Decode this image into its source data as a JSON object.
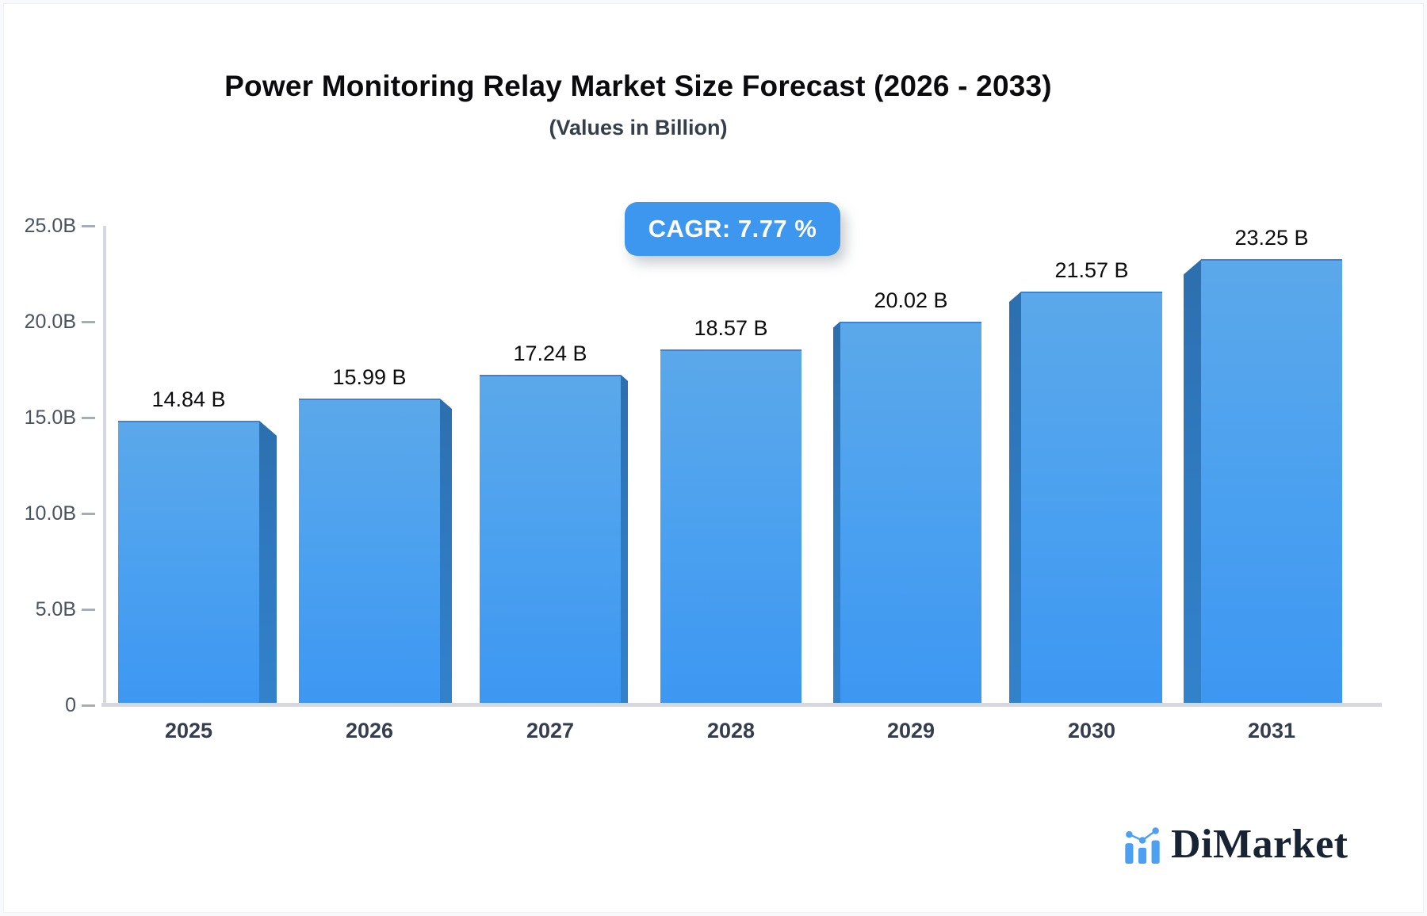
{
  "chart_data": {
    "type": "bar",
    "title": "Power Monitoring Relay Market Size Forecast (2026 - 2033)",
    "subtitle": "(Values in Billion)",
    "cagr_text": "CAGR: 7.77 %",
    "categories": [
      "2025",
      "2026",
      "2027",
      "2028",
      "2029",
      "2030",
      "2031"
    ],
    "values": [
      14.84,
      15.99,
      17.24,
      18.57,
      20.02,
      21.57,
      23.25
    ],
    "bar_labels": [
      "14.84 B",
      "15.99 B",
      "17.24 B",
      "18.57 B",
      "20.02 B",
      "21.57 B",
      "23.25 B"
    ],
    "xlabel": "",
    "ylabel": "",
    "ylim": [
      0,
      25
    ],
    "yticks": [
      {
        "value": 25,
        "label": "25.0B"
      },
      {
        "value": 20,
        "label": "20.0B"
      },
      {
        "value": 15,
        "label": "15.0B"
      },
      {
        "value": 10,
        "label": "10.0B"
      },
      {
        "value": 5,
        "label": "5.0B"
      },
      {
        "value": 0,
        "label": "0"
      }
    ],
    "grid": false,
    "legend": null,
    "bar_style": "3d-beveled",
    "colors": {
      "bar_face_top": "#5BA8EA",
      "bar_face_bottom": "#3D97F2",
      "bar_side": "#2F75B7",
      "accent": "#3E97EE",
      "axis": "#D5D8DE"
    }
  },
  "logo": {
    "text": "DiMarket",
    "icon": "mini-bar-chart-trend-icon",
    "color": "#4BA0F2"
  }
}
